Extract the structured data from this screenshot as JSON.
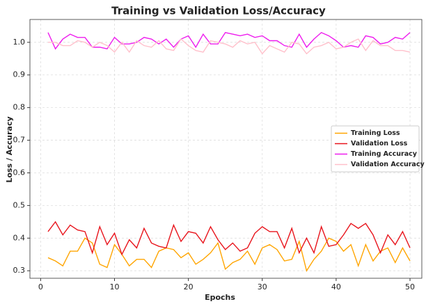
{
  "chart_data": {
    "type": "line",
    "title": "Training vs Validation Loss/Accuracy",
    "xlabel": "Epochs",
    "ylabel": "Loss / Accuracy",
    "x": [
      1,
      2,
      3,
      4,
      5,
      6,
      7,
      8,
      9,
      10,
      11,
      12,
      13,
      14,
      15,
      16,
      17,
      18,
      19,
      20,
      21,
      22,
      23,
      24,
      25,
      26,
      27,
      28,
      29,
      30,
      31,
      32,
      33,
      34,
      35,
      36,
      37,
      38,
      39,
      40,
      41,
      42,
      43,
      44,
      45,
      46,
      47,
      48,
      49,
      50
    ],
    "series": [
      {
        "name": "Training Loss",
        "color": "#ffa500",
        "values": [
          0.34,
          0.33,
          0.315,
          0.36,
          0.36,
          0.4,
          0.385,
          0.32,
          0.31,
          0.38,
          0.35,
          0.315,
          0.335,
          0.335,
          0.31,
          0.36,
          0.37,
          0.365,
          0.34,
          0.355,
          0.32,
          0.335,
          0.355,
          0.385,
          0.305,
          0.325,
          0.335,
          0.36,
          0.32,
          0.37,
          0.38,
          0.365,
          0.33,
          0.335,
          0.39,
          0.3,
          0.335,
          0.36,
          0.4,
          0.39,
          0.36,
          0.38,
          0.315,
          0.38,
          0.33,
          0.36,
          0.37,
          0.325,
          0.37,
          0.33
        ]
      },
      {
        "name": "Validation Loss",
        "color": "#e8141c",
        "values": [
          0.42,
          0.45,
          0.41,
          0.44,
          0.425,
          0.42,
          0.355,
          0.435,
          0.38,
          0.415,
          0.35,
          0.395,
          0.37,
          0.43,
          0.385,
          0.375,
          0.37,
          0.44,
          0.39,
          0.42,
          0.415,
          0.385,
          0.435,
          0.395,
          0.365,
          0.385,
          0.36,
          0.37,
          0.415,
          0.435,
          0.42,
          0.42,
          0.37,
          0.43,
          0.355,
          0.4,
          0.355,
          0.435,
          0.375,
          0.38,
          0.41,
          0.445,
          0.43,
          0.445,
          0.41,
          0.355,
          0.41,
          0.38,
          0.42,
          0.37
        ]
      },
      {
        "name": "Training Accuracy",
        "color": "#ee1cee",
        "values": [
          1.03,
          0.98,
          1.01,
          1.025,
          1.015,
          1.015,
          0.985,
          0.985,
          0.98,
          1.015,
          0.995,
          0.995,
          1.0,
          1.015,
          1.01,
          0.995,
          1.01,
          0.985,
          1.01,
          1.02,
          0.985,
          1.025,
          0.995,
          0.995,
          1.03,
          1.025,
          1.02,
          1.025,
          1.015,
          1.02,
          1.005,
          1.005,
          0.99,
          0.985,
          1.025,
          0.985,
          1.01,
          1.03,
          1.02,
          1.005,
          0.985,
          0.99,
          0.985,
          1.02,
          1.015,
          0.995,
          1.0,
          1.015,
          1.01,
          1.03
        ]
      },
      {
        "name": "Validation Accuracy",
        "color": "#ffc0cb",
        "values": [
          1.0,
          1.0,
          0.99,
          0.99,
          1.005,
          1.0,
          0.985,
          1.0,
          0.99,
          0.97,
          1.0,
          0.97,
          1.005,
          0.99,
          0.985,
          1.005,
          0.98,
          0.975,
          1.01,
          0.99,
          0.975,
          0.97,
          1.005,
          1.0,
          0.995,
          0.985,
          1.005,
          0.995,
          1.0,
          0.965,
          0.99,
          0.98,
          0.97,
          1.0,
          0.995,
          0.965,
          0.985,
          0.99,
          1.0,
          0.98,
          0.985,
          1.0,
          1.01,
          0.975,
          1.005,
          0.99,
          0.99,
          0.975,
          0.975,
          0.97
        ]
      }
    ],
    "xlim": [
      -1.45,
      51.6
    ],
    "xticks": [
      0,
      10,
      20,
      30,
      40,
      50
    ],
    "ylim": [
      0.277,
      1.07
    ],
    "yticks": [
      0.3,
      0.4,
      0.5,
      0.6,
      0.7,
      0.8,
      0.9,
      {
        "value": 1,
        "label": "1.0"
      }
    ],
    "grid": true,
    "legend": "center right"
  }
}
